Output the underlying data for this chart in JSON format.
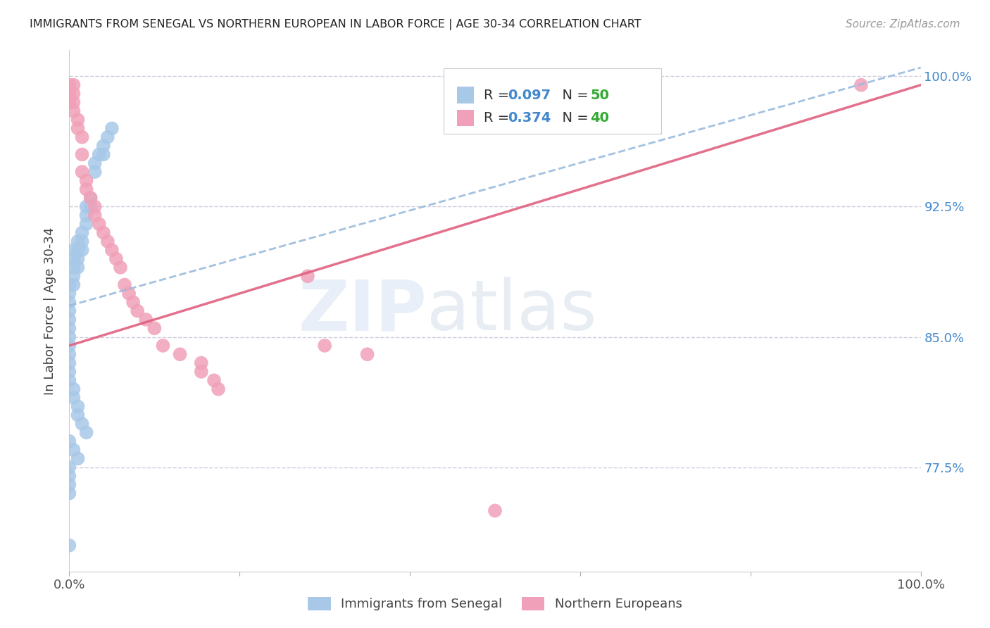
{
  "title": "IMMIGRANTS FROM SENEGAL VS NORTHERN EUROPEAN IN LABOR FORCE | AGE 30-34 CORRELATION CHART",
  "source": "Source: ZipAtlas.com",
  "ylabel": "In Labor Force | Age 30-34",
  "xmin": 0.0,
  "xmax": 1.0,
  "ymin": 0.715,
  "ymax": 1.015,
  "yticks": [
    0.775,
    0.85,
    0.925,
    1.0
  ],
  "ytick_labels": [
    "77.5%",
    "85.0%",
    "92.5%",
    "100.0%"
  ],
  "blue_R": 0.097,
  "blue_N": 50,
  "pink_R": 0.374,
  "pink_N": 40,
  "blue_color": "#a8c8e8",
  "pink_color": "#f0a0b8",
  "blue_label": "Immigrants from Senegal",
  "pink_label": "Northern Europeans",
  "legend_R_color": "#4488cc",
  "legend_N_color": "#33aa33",
  "blue_scatter_x": [
    0.0,
    0.0,
    0.0,
    0.0,
    0.0,
    0.0,
    0.0,
    0.0,
    0.0,
    0.0,
    0.005,
    0.005,
    0.005,
    0.005,
    0.005,
    0.01,
    0.01,
    0.01,
    0.01,
    0.015,
    0.015,
    0.015,
    0.02,
    0.02,
    0.02,
    0.025,
    0.025,
    0.03,
    0.03,
    0.035,
    0.04,
    0.04,
    0.045,
    0.05,
    0.0,
    0.0,
    0.005,
    0.005,
    0.01,
    0.01,
    0.015,
    0.02,
    0.0,
    0.005,
    0.01,
    0.0,
    0.0,
    0.0,
    0.0,
    0.0
  ],
  "blue_scatter_y": [
    0.88,
    0.875,
    0.87,
    0.865,
    0.86,
    0.855,
    0.85,
    0.845,
    0.84,
    0.835,
    0.9,
    0.895,
    0.89,
    0.885,
    0.88,
    0.905,
    0.9,
    0.895,
    0.89,
    0.91,
    0.905,
    0.9,
    0.925,
    0.92,
    0.915,
    0.93,
    0.925,
    0.95,
    0.945,
    0.955,
    0.96,
    0.955,
    0.965,
    0.97,
    0.83,
    0.825,
    0.82,
    0.815,
    0.81,
    0.805,
    0.8,
    0.795,
    0.79,
    0.785,
    0.78,
    0.775,
    0.77,
    0.765,
    0.76,
    0.73
  ],
  "pink_scatter_x": [
    0.0,
    0.0,
    0.0,
    0.005,
    0.005,
    0.005,
    0.005,
    0.01,
    0.01,
    0.015,
    0.015,
    0.015,
    0.02,
    0.02,
    0.025,
    0.03,
    0.03,
    0.035,
    0.04,
    0.045,
    0.05,
    0.055,
    0.06,
    0.065,
    0.07,
    0.075,
    0.08,
    0.09,
    0.1,
    0.11,
    0.13,
    0.155,
    0.155,
    0.17,
    0.175,
    0.28,
    0.3,
    0.35,
    0.5,
    0.93
  ],
  "pink_scatter_y": [
    0.995,
    0.99,
    0.985,
    0.995,
    0.99,
    0.985,
    0.98,
    0.975,
    0.97,
    0.965,
    0.955,
    0.945,
    0.94,
    0.935,
    0.93,
    0.925,
    0.92,
    0.915,
    0.91,
    0.905,
    0.9,
    0.895,
    0.89,
    0.88,
    0.875,
    0.87,
    0.865,
    0.86,
    0.855,
    0.845,
    0.84,
    0.835,
    0.83,
    0.825,
    0.82,
    0.885,
    0.845,
    0.84,
    0.75,
    0.995
  ],
  "blue_line_x0": 0.0,
  "blue_line_x1": 1.0,
  "blue_line_y0": 0.868,
  "blue_line_y1": 1.005,
  "pink_line_x0": 0.0,
  "pink_line_x1": 1.0,
  "pink_line_y0": 0.845,
  "pink_line_y1": 0.995
}
